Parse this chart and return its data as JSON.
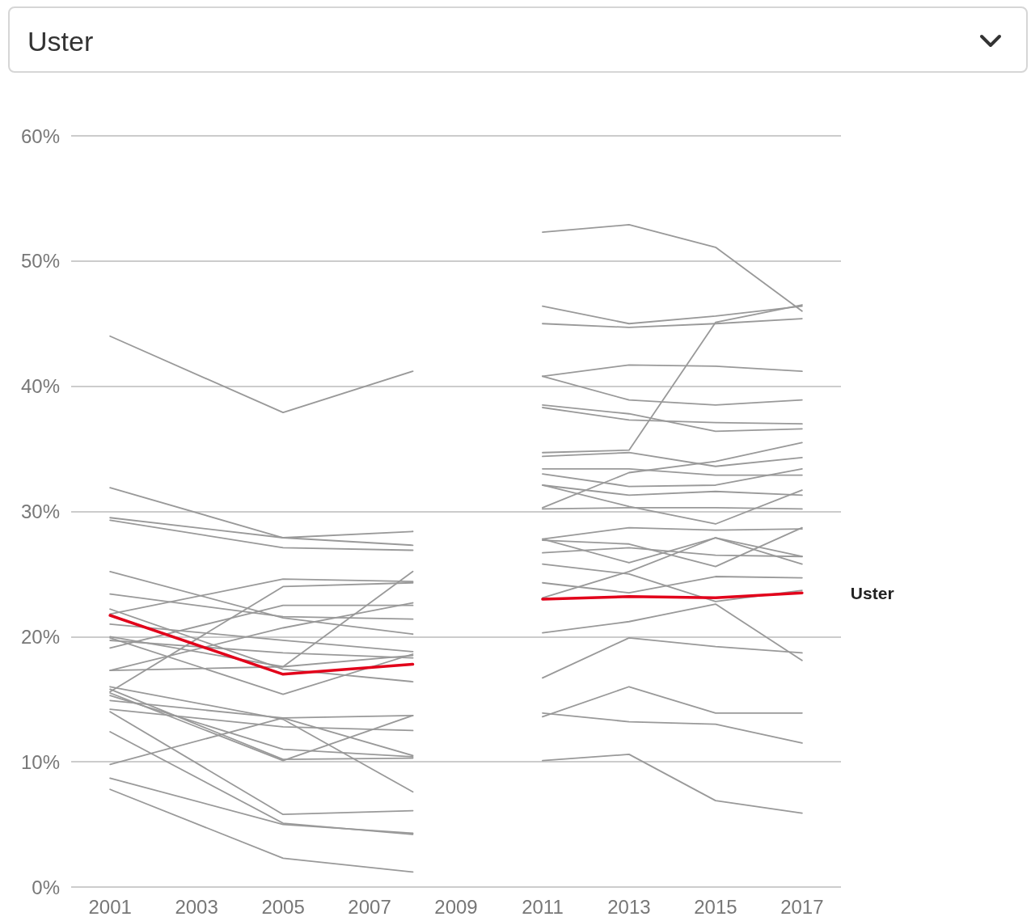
{
  "chart_data": {
    "type": "line",
    "title": "Uster",
    "xlim": [
      2000.1,
      2017.9
    ],
    "xticks": [
      2001,
      2003,
      2005,
      2007,
      2009,
      2011,
      2013,
      2015,
      2017
    ],
    "ylim": [
      0,
      60
    ],
    "yticks": [
      {
        "value": 0,
        "label": "0%"
      },
      {
        "value": 10,
        "label": "10%"
      },
      {
        "value": 20,
        "label": "20%"
      },
      {
        "value": 30,
        "label": "30%"
      },
      {
        "value": 40,
        "label": "40%"
      },
      {
        "value": 50,
        "label": "50%"
      },
      {
        "value": 60,
        "label": "60%"
      }
    ],
    "grid": "y",
    "legend": false,
    "line_style": "solid",
    "series": [
      {
        "color": "#999999",
        "x": [
          2001,
          2005,
          2008
        ],
        "values": [
          44.0,
          37.9,
          41.2
        ]
      },
      {
        "color": "#999999",
        "x": [
          2001,
          2005,
          2008
        ],
        "values": [
          31.9,
          27.9,
          27.3
        ]
      },
      {
        "color": "#999999",
        "x": [
          2001,
          2005,
          2008
        ],
        "values": [
          29.5,
          27.9,
          28.4
        ]
      },
      {
        "color": "#999999",
        "x": [
          2001,
          2005,
          2008
        ],
        "values": [
          29.3,
          27.1,
          26.9
        ]
      },
      {
        "color": "#999999",
        "x": [
          2001,
          2005,
          2008
        ],
        "values": [
          25.2,
          21.5,
          20.2
        ]
      },
      {
        "color": "#999999",
        "x": [
          2001,
          2005,
          2008
        ],
        "values": [
          23.4,
          21.6,
          21.4
        ]
      },
      {
        "color": "#999999",
        "x": [
          2001,
          2005,
          2008
        ],
        "values": [
          21.8,
          24.6,
          24.4
        ]
      },
      {
        "color": "#999999",
        "x": [
          2001,
          2005,
          2008
        ],
        "values": [
          15.6,
          24.0,
          24.3
        ]
      },
      {
        "color": "#999999",
        "x": [
          2001,
          2005,
          2008
        ],
        "values": [
          19.1,
          22.5,
          22.5
        ]
      },
      {
        "color": "#999999",
        "x": [
          2001,
          2005,
          2008
        ],
        "values": [
          17.3,
          20.7,
          22.7
        ]
      },
      {
        "color": "#999999",
        "x": [
          2001,
          2005,
          2008
        ],
        "values": [
          20.0,
          17.6,
          25.2
        ]
      },
      {
        "color": "#999999",
        "x": [
          2001,
          2005,
          2008
        ],
        "values": [
          21.0,
          19.7,
          18.8
        ]
      },
      {
        "color": "#999999",
        "x": [
          2001,
          2005,
          2008
        ],
        "values": [
          19.7,
          18.7,
          18.3
        ]
      },
      {
        "color": "#999999",
        "x": [
          2001,
          2005,
          2008
        ],
        "values": [
          22.2,
          17.4,
          16.4
        ]
      },
      {
        "color": "#999999",
        "x": [
          2001,
          2005,
          2008
        ],
        "values": [
          17.3,
          17.6,
          18.5
        ]
      },
      {
        "color": "#999999",
        "x": [
          2001,
          2005,
          2008
        ],
        "values": [
          19.9,
          15.4,
          18.6
        ]
      },
      {
        "color": "#999999",
        "x": [
          2001,
          2005,
          2008
        ],
        "values": [
          16.0,
          13.4,
          7.6
        ]
      },
      {
        "color": "#999999",
        "x": [
          2001,
          2005,
          2008
        ],
        "values": [
          14.9,
          13.5,
          13.7
        ]
      },
      {
        "color": "#999999",
        "x": [
          2001,
          2005,
          2008
        ],
        "values": [
          14.2,
          12.8,
          12.5
        ]
      },
      {
        "color": "#999999",
        "x": [
          2001,
          2005,
          2008
        ],
        "values": [
          9.8,
          13.5,
          10.5
        ]
      },
      {
        "color": "#999999",
        "x": [
          2001,
          2005,
          2008
        ],
        "values": [
          15.5,
          10.1,
          13.7
        ]
      },
      {
        "color": "#999999",
        "x": [
          2001,
          2005,
          2008
        ],
        "values": [
          15.3,
          11.0,
          10.4
        ]
      },
      {
        "color": "#999999",
        "x": [
          2001,
          2005,
          2008
        ],
        "values": [
          15.8,
          10.2,
          10.3
        ]
      },
      {
        "color": "#999999",
        "x": [
          2001,
          2005,
          2008
        ],
        "values": [
          14.0,
          5.8,
          6.1
        ]
      },
      {
        "color": "#999999",
        "x": [
          2001,
          2005,
          2008
        ],
        "values": [
          12.4,
          5.1,
          4.2
        ]
      },
      {
        "color": "#999999",
        "x": [
          2001,
          2005,
          2008
        ],
        "values": [
          8.7,
          5.0,
          4.3
        ]
      },
      {
        "color": "#999999",
        "x": [
          2001,
          2005,
          2008
        ],
        "values": [
          7.8,
          2.3,
          1.2
        ]
      },
      {
        "color": "#999999",
        "x": [
          2011,
          2013,
          2015,
          2017
        ],
        "values": [
          52.3,
          52.9,
          51.1,
          46.0
        ]
      },
      {
        "color": "#999999",
        "x": [
          2011,
          2013,
          2015,
          2017
        ],
        "values": [
          46.4,
          45.0,
          45.6,
          46.4
        ]
      },
      {
        "color": "#999999",
        "x": [
          2011,
          2013,
          2015,
          2017
        ],
        "values": [
          45.0,
          44.7,
          45.0,
          45.4
        ]
      },
      {
        "color": "#999999",
        "x": [
          2011,
          2013,
          2015,
          2017
        ],
        "values": [
          34.7,
          34.9,
          45.1,
          46.5
        ]
      },
      {
        "color": "#999999",
        "x": [
          2011,
          2013,
          2015,
          2017
        ],
        "values": [
          40.8,
          41.7,
          41.6,
          41.2
        ]
      },
      {
        "color": "#999999",
        "x": [
          2011,
          2013,
          2015,
          2017
        ],
        "values": [
          40.8,
          38.9,
          38.5,
          38.9
        ]
      },
      {
        "color": "#999999",
        "x": [
          2011,
          2013,
          2015,
          2017
        ],
        "values": [
          38.5,
          37.8,
          36.4,
          36.6
        ]
      },
      {
        "color": "#999999",
        "x": [
          2011,
          2013,
          2015,
          2017
        ],
        "values": [
          38.3,
          37.3,
          37.1,
          37.0
        ]
      },
      {
        "color": "#999999",
        "x": [
          2011,
          2013,
          2015,
          2017
        ],
        "values": [
          34.4,
          34.7,
          33.6,
          34.3
        ]
      },
      {
        "color": "#999999",
        "x": [
          2011,
          2013,
          2015,
          2017
        ],
        "values": [
          30.3,
          33.1,
          34.0,
          35.5
        ]
      },
      {
        "color": "#999999",
        "x": [
          2011,
          2013,
          2015,
          2017
        ],
        "values": [
          33.4,
          33.4,
          32.9,
          32.9
        ]
      },
      {
        "color": "#999999",
        "x": [
          2011,
          2013,
          2015,
          2017
        ],
        "values": [
          33.0,
          32.0,
          32.1,
          33.4
        ]
      },
      {
        "color": "#999999",
        "x": [
          2011,
          2013,
          2015,
          2017
        ],
        "values": [
          32.1,
          31.3,
          31.6,
          31.3
        ]
      },
      {
        "color": "#999999",
        "x": [
          2011,
          2013,
          2015,
          2017
        ],
        "values": [
          32.1,
          30.4,
          29.0,
          31.7
        ]
      },
      {
        "color": "#999999",
        "x": [
          2011,
          2013,
          2015,
          2017
        ],
        "values": [
          30.2,
          30.3,
          30.3,
          30.2
        ]
      },
      {
        "color": "#999999",
        "x": [
          2011,
          2013,
          2015,
          2017
        ],
        "values": [
          27.8,
          28.7,
          28.5,
          28.6
        ]
      },
      {
        "color": "#999999",
        "x": [
          2011,
          2013,
          2015,
          2017
        ],
        "values": [
          27.8,
          25.9,
          27.9,
          25.8
        ]
      },
      {
        "color": "#999999",
        "x": [
          2011,
          2013,
          2015,
          2017
        ],
        "values": [
          27.7,
          27.4,
          25.6,
          28.7
        ]
      },
      {
        "color": "#999999",
        "x": [
          2011,
          2013,
          2015,
          2017
        ],
        "values": [
          26.7,
          27.1,
          26.5,
          26.4
        ]
      },
      {
        "color": "#999999",
        "x": [
          2011,
          2013,
          2015,
          2017
        ],
        "values": [
          25.8,
          25.0,
          22.8,
          23.7
        ]
      },
      {
        "color": "#999999",
        "x": [
          2011,
          2013,
          2015,
          2017
        ],
        "values": [
          24.3,
          23.5,
          24.8,
          24.7
        ]
      },
      {
        "color": "#999999",
        "x": [
          2011,
          2013,
          2015,
          2017
        ],
        "values": [
          23.1,
          25.2,
          27.9,
          26.4
        ]
      },
      {
        "color": "#999999",
        "x": [
          2011,
          2013,
          2015,
          2017
        ],
        "values": [
          20.3,
          21.2,
          22.6,
          18.1
        ]
      },
      {
        "color": "#999999",
        "x": [
          2011,
          2013,
          2015,
          2017
        ],
        "values": [
          16.7,
          19.9,
          19.2,
          18.7
        ]
      },
      {
        "color": "#999999",
        "x": [
          2011,
          2013,
          2015,
          2017
        ],
        "values": [
          13.6,
          16.0,
          13.9,
          13.9
        ]
      },
      {
        "color": "#999999",
        "x": [
          2011,
          2013,
          2015,
          2017
        ],
        "values": [
          13.9,
          13.2,
          13.0,
          11.5
        ]
      },
      {
        "color": "#999999",
        "x": [
          2011,
          2013,
          2015,
          2017
        ],
        "values": [
          10.1,
          10.6,
          6.9,
          5.9
        ]
      },
      {
        "color": "#e2001a",
        "x": [
          2001,
          2005,
          2008
        ],
        "values": [
          21.7,
          17.0,
          17.8
        ]
      },
      {
        "name": "Uster",
        "color": "#e2001a",
        "x": [
          2011,
          2013,
          2015,
          2017
        ],
        "values": [
          23.0,
          23.2,
          23.1,
          23.5
        ]
      }
    ]
  }
}
